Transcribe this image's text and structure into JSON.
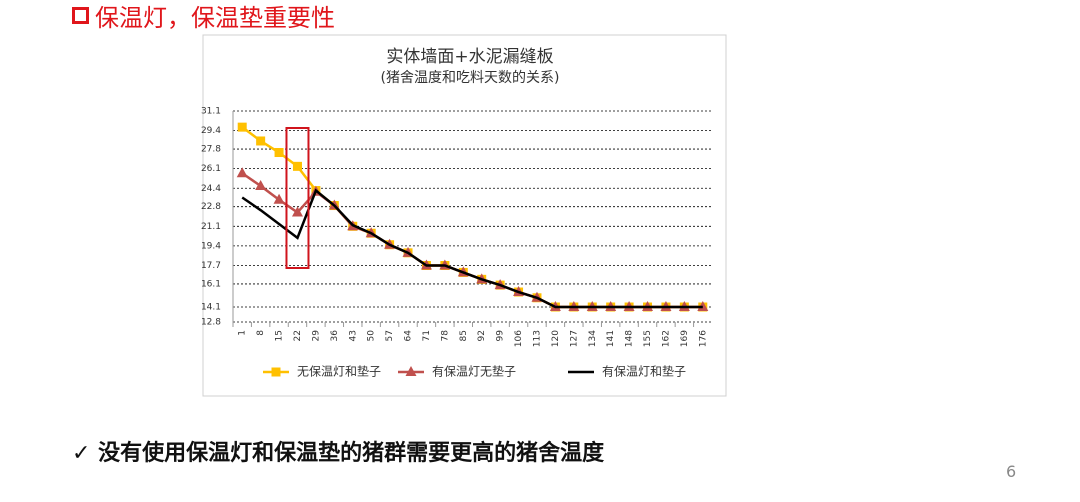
{
  "heading": "保温灯，保温垫重要性",
  "conclusion": "✓ 没有使用保温灯和保温垫的猪群需要更高的猪舍温度",
  "page_number": "6",
  "chart_data": {
    "type": "line",
    "title": "实体墙面+水泥漏缝板",
    "subtitle": "(猪舍温度和吃料天数的关系)",
    "categories": [
      "1",
      "8",
      "15",
      "22",
      "29",
      "36",
      "43",
      "50",
      "57",
      "64",
      "71",
      "78",
      "85",
      "92",
      "99",
      "106",
      "113",
      "120",
      "127",
      "134",
      "141",
      "148",
      "155",
      "162",
      "169",
      "176"
    ],
    "series": [
      {
        "name": "无保温灯和垫子",
        "color": "#ffc000",
        "marker": "square",
        "values": [
          29.7,
          28.5,
          27.5,
          26.3,
          24.2,
          22.9,
          21.1,
          20.5,
          19.5,
          18.8,
          17.7,
          17.7,
          17.1,
          16.5,
          16.0,
          15.4,
          14.9,
          14.1,
          14.1,
          14.1,
          14.1,
          14.1,
          14.1,
          14.1,
          14.1,
          14.1
        ]
      },
      {
        "name": "有保温灯无垫子",
        "color": "#c0504d",
        "marker": "triangle",
        "values": [
          25.7,
          24.6,
          23.4,
          22.3,
          24.1,
          22.9,
          21.1,
          20.5,
          19.5,
          18.8,
          17.7,
          17.7,
          17.1,
          16.5,
          16.0,
          15.4,
          14.9,
          14.1,
          14.1,
          14.1,
          14.1,
          14.1,
          14.1,
          14.1,
          14.1,
          14.1
        ]
      },
      {
        "name": "有保温灯和垫子",
        "color": "#000000",
        "marker": "none",
        "values": [
          23.6,
          22.5,
          21.3,
          20.1,
          24.2,
          22.9,
          21.2,
          20.5,
          19.5,
          18.8,
          17.7,
          17.7,
          17.1,
          16.5,
          16.0,
          15.4,
          14.9,
          14.1,
          14.1,
          14.1,
          14.1,
          14.1,
          14.1,
          14.1,
          14.1,
          14.1
        ]
      }
    ],
    "ylim": [
      12.8,
      31.1
    ],
    "yticks": [
      12.8,
      14.1,
      16.1,
      17.7,
      19.4,
      21.1,
      22.8,
      24.4,
      26.1,
      27.8,
      29.4,
      31.1
    ],
    "grid": true,
    "legend": "bottom"
  }
}
